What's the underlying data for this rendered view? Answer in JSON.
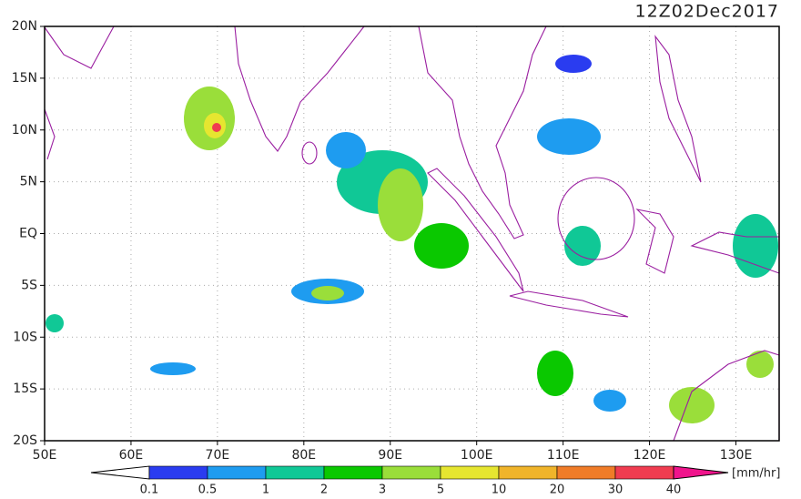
{
  "map": {
    "title": "12Z02Dec2017",
    "lon_labels": [
      "50E",
      "60E",
      "70E",
      "80E",
      "90E",
      "100E",
      "110E",
      "120E",
      "130E"
    ],
    "lat_labels": [
      "20N",
      "15N",
      "10N",
      "5N",
      "EQ",
      "5S",
      "10S",
      "15S",
      "20S"
    ],
    "colorbar": {
      "labels": [
        "0.1",
        "0.5",
        "1",
        "2",
        "3",
        "5",
        "10",
        "20",
        "30",
        "40"
      ],
      "colors": [
        "#2a3cf0",
        "#1e9cf0",
        "#10c896",
        "#0ac800",
        "#9ade3a",
        "#e6e630",
        "#f0b42a",
        "#f07c28",
        "#f03c50"
      ],
      "unit": "[mm/hr]"
    }
  }
}
